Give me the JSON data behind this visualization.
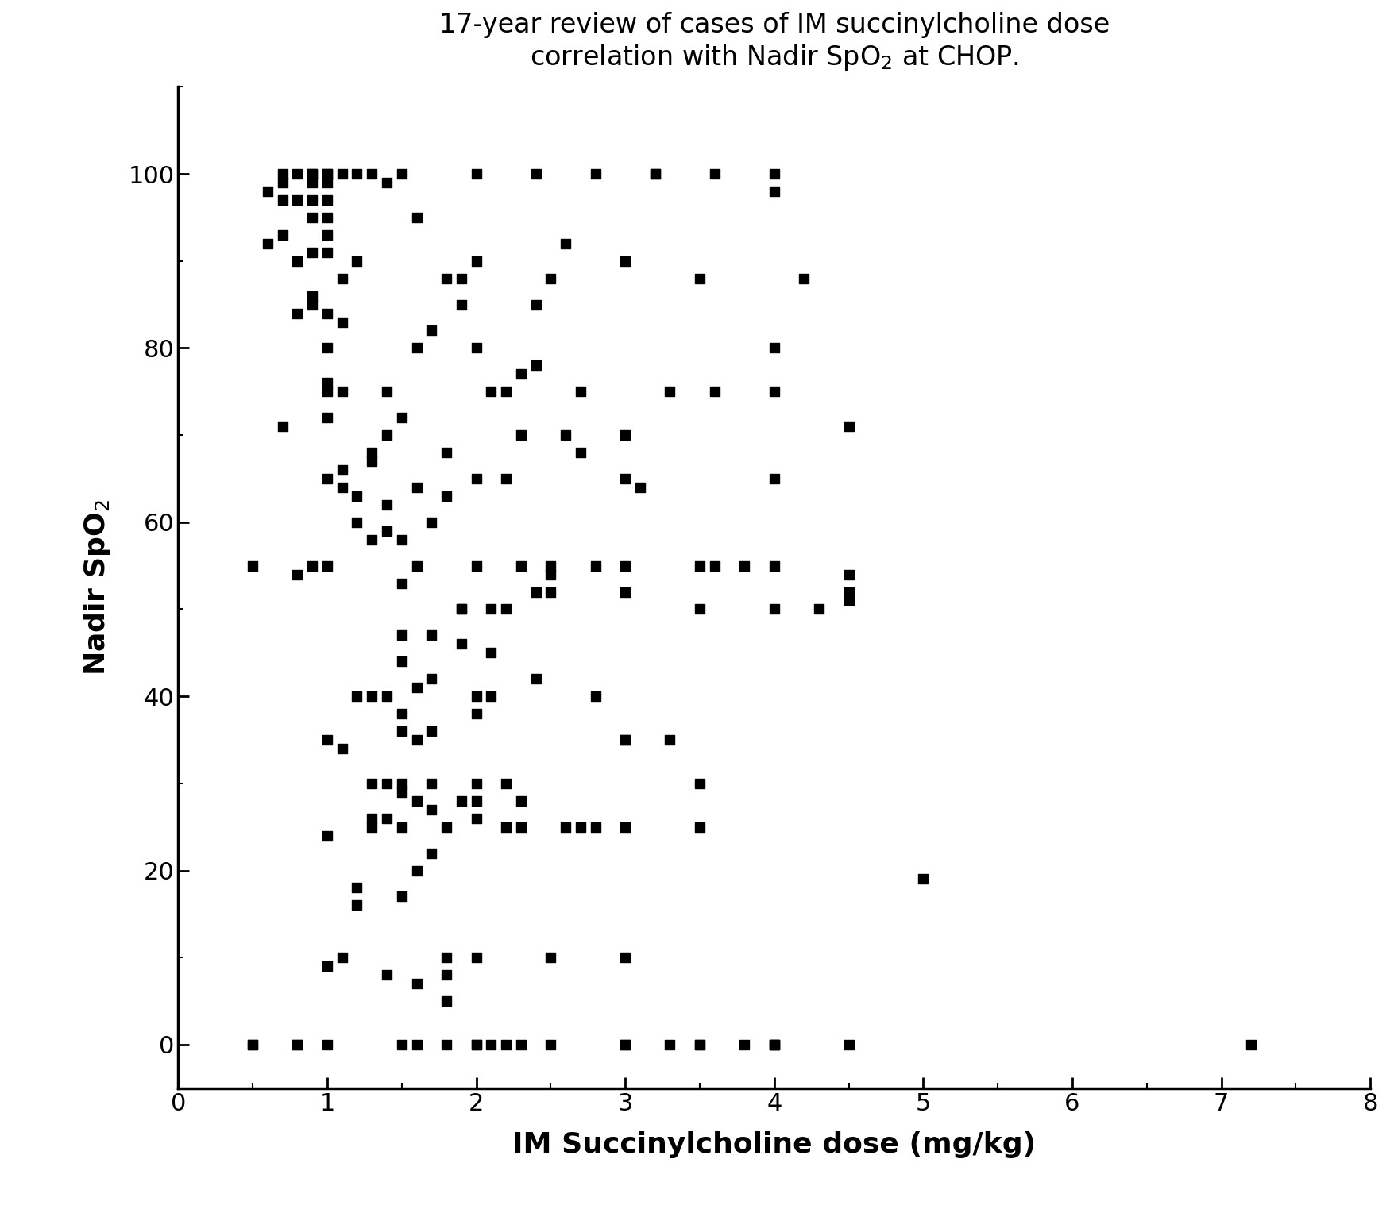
{
  "title_line1": "17-year review of cases of IM succinylcholine dose",
  "title_line2": "correlation with Nadir SpO",
  "title_subscript": "2",
  "title_suffix": " at CHOP.",
  "xlabel": "IM Succinylcholine dose (mg/kg)",
  "ylabel": "Nadir SpO$_2$",
  "xlim": [
    0,
    8
  ],
  "ylim": [
    -5,
    110
  ],
  "xticks": [
    0,
    1,
    2,
    3,
    4,
    5,
    6,
    7,
    8
  ],
  "yticks": [
    0,
    20,
    40,
    60,
    80,
    100
  ],
  "background_color": "#ffffff",
  "marker_color": "#000000",
  "marker_size": 80,
  "x": [
    0.5,
    0.5,
    0.5,
    0.6,
    0.6,
    0.7,
    0.7,
    0.7,
    0.7,
    0.7,
    0.8,
    0.8,
    0.8,
    0.8,
    0.8,
    0.8,
    0.8,
    0.9,
    0.9,
    0.9,
    0.9,
    0.9,
    0.9,
    0.9,
    0.9,
    0.9,
    1.0,
    1.0,
    1.0,
    1.0,
    1.0,
    1.0,
    1.0,
    1.0,
    1.0,
    1.0,
    1.0,
    1.0,
    1.0,
    1.0,
    1.0,
    1.0,
    1.0,
    1.0,
    1.1,
    1.1,
    1.1,
    1.1,
    1.1,
    1.1,
    1.1,
    1.1,
    1.2,
    1.2,
    1.2,
    1.2,
    1.2,
    1.2,
    1.2,
    1.3,
    1.3,
    1.3,
    1.3,
    1.3,
    1.3,
    1.3,
    1.3,
    1.4,
    1.4,
    1.4,
    1.4,
    1.4,
    1.4,
    1.4,
    1.4,
    1.4,
    1.5,
    1.5,
    1.5,
    1.5,
    1.5,
    1.5,
    1.5,
    1.5,
    1.5,
    1.5,
    1.5,
    1.5,
    1.5,
    1.6,
    1.6,
    1.6,
    1.6,
    1.6,
    1.6,
    1.6,
    1.6,
    1.6,
    1.6,
    1.7,
    1.7,
    1.7,
    1.7,
    1.7,
    1.7,
    1.7,
    1.7,
    1.8,
    1.8,
    1.8,
    1.8,
    1.8,
    1.8,
    1.8,
    1.8,
    1.9,
    1.9,
    1.9,
    1.9,
    1.9,
    1.9,
    2.0,
    2.0,
    2.0,
    2.0,
    2.0,
    2.0,
    2.0,
    2.0,
    2.0,
    2.0,
    2.0,
    2.0,
    2.0,
    2.1,
    2.1,
    2.1,
    2.1,
    2.1,
    2.2,
    2.2,
    2.2,
    2.2,
    2.2,
    2.2,
    2.3,
    2.3,
    2.3,
    2.3,
    2.3,
    2.3,
    2.4,
    2.4,
    2.4,
    2.4,
    2.4,
    2.5,
    2.5,
    2.5,
    2.5,
    2.5,
    2.5,
    2.6,
    2.6,
    2.6,
    2.7,
    2.7,
    2.7,
    2.8,
    2.8,
    2.8,
    2.8,
    3.0,
    3.0,
    3.0,
    3.0,
    3.0,
    3.0,
    3.0,
    3.0,
    3.0,
    3.0,
    3.0,
    3.1,
    3.2,
    3.2,
    3.3,
    3.3,
    3.3,
    3.5,
    3.5,
    3.5,
    3.5,
    3.5,
    3.5,
    3.5,
    3.6,
    3.6,
    3.6,
    3.8,
    3.8,
    4.0,
    4.0,
    4.0,
    4.0,
    4.0,
    4.0,
    4.0,
    4.0,
    4.0,
    4.0,
    4.2,
    4.3,
    4.5,
    4.5,
    4.5,
    4.5,
    4.5,
    5.0,
    7.2
  ],
  "y": [
    0,
    0,
    55,
    92,
    98,
    71,
    93,
    97,
    99,
    100,
    0,
    0,
    54,
    84,
    90,
    97,
    100,
    55,
    85,
    86,
    91,
    95,
    97,
    99,
    100,
    100,
    0,
    9,
    24,
    35,
    55,
    65,
    72,
    75,
    76,
    80,
    84,
    91,
    93,
    95,
    97,
    99,
    100,
    100,
    10,
    34,
    64,
    66,
    75,
    83,
    88,
    100,
    16,
    18,
    40,
    60,
    63,
    90,
    100,
    25,
    26,
    30,
    40,
    58,
    67,
    68,
    100,
    8,
    26,
    30,
    40,
    59,
    62,
    70,
    75,
    99,
    0,
    17,
    25,
    29,
    30,
    36,
    38,
    44,
    47,
    53,
    58,
    72,
    100,
    0,
    7,
    20,
    28,
    35,
    41,
    55,
    64,
    80,
    95,
    22,
    27,
    30,
    36,
    42,
    47,
    60,
    82,
    0,
    5,
    8,
    10,
    25,
    63,
    68,
    88,
    28,
    46,
    50,
    50,
    85,
    88,
    0,
    0,
    10,
    26,
    28,
    30,
    38,
    40,
    55,
    65,
    80,
    90,
    100,
    0,
    40,
    45,
    50,
    75,
    0,
    25,
    30,
    50,
    65,
    75,
    0,
    25,
    28,
    55,
    70,
    77,
    42,
    52,
    78,
    85,
    100,
    0,
    10,
    52,
    54,
    55,
    88,
    25,
    70,
    92,
    25,
    68,
    75,
    25,
    40,
    55,
    100,
    0,
    0,
    10,
    25,
    35,
    35,
    52,
    55,
    65,
    70,
    90,
    64,
    100,
    100,
    0,
    35,
    75,
    0,
    0,
    25,
    30,
    50,
    55,
    88,
    55,
    75,
    100,
    0,
    55,
    0,
    0,
    0,
    50,
    55,
    65,
    75,
    80,
    98,
    100,
    88,
    50,
    0,
    51,
    52,
    54,
    71,
    19,
    0
  ]
}
